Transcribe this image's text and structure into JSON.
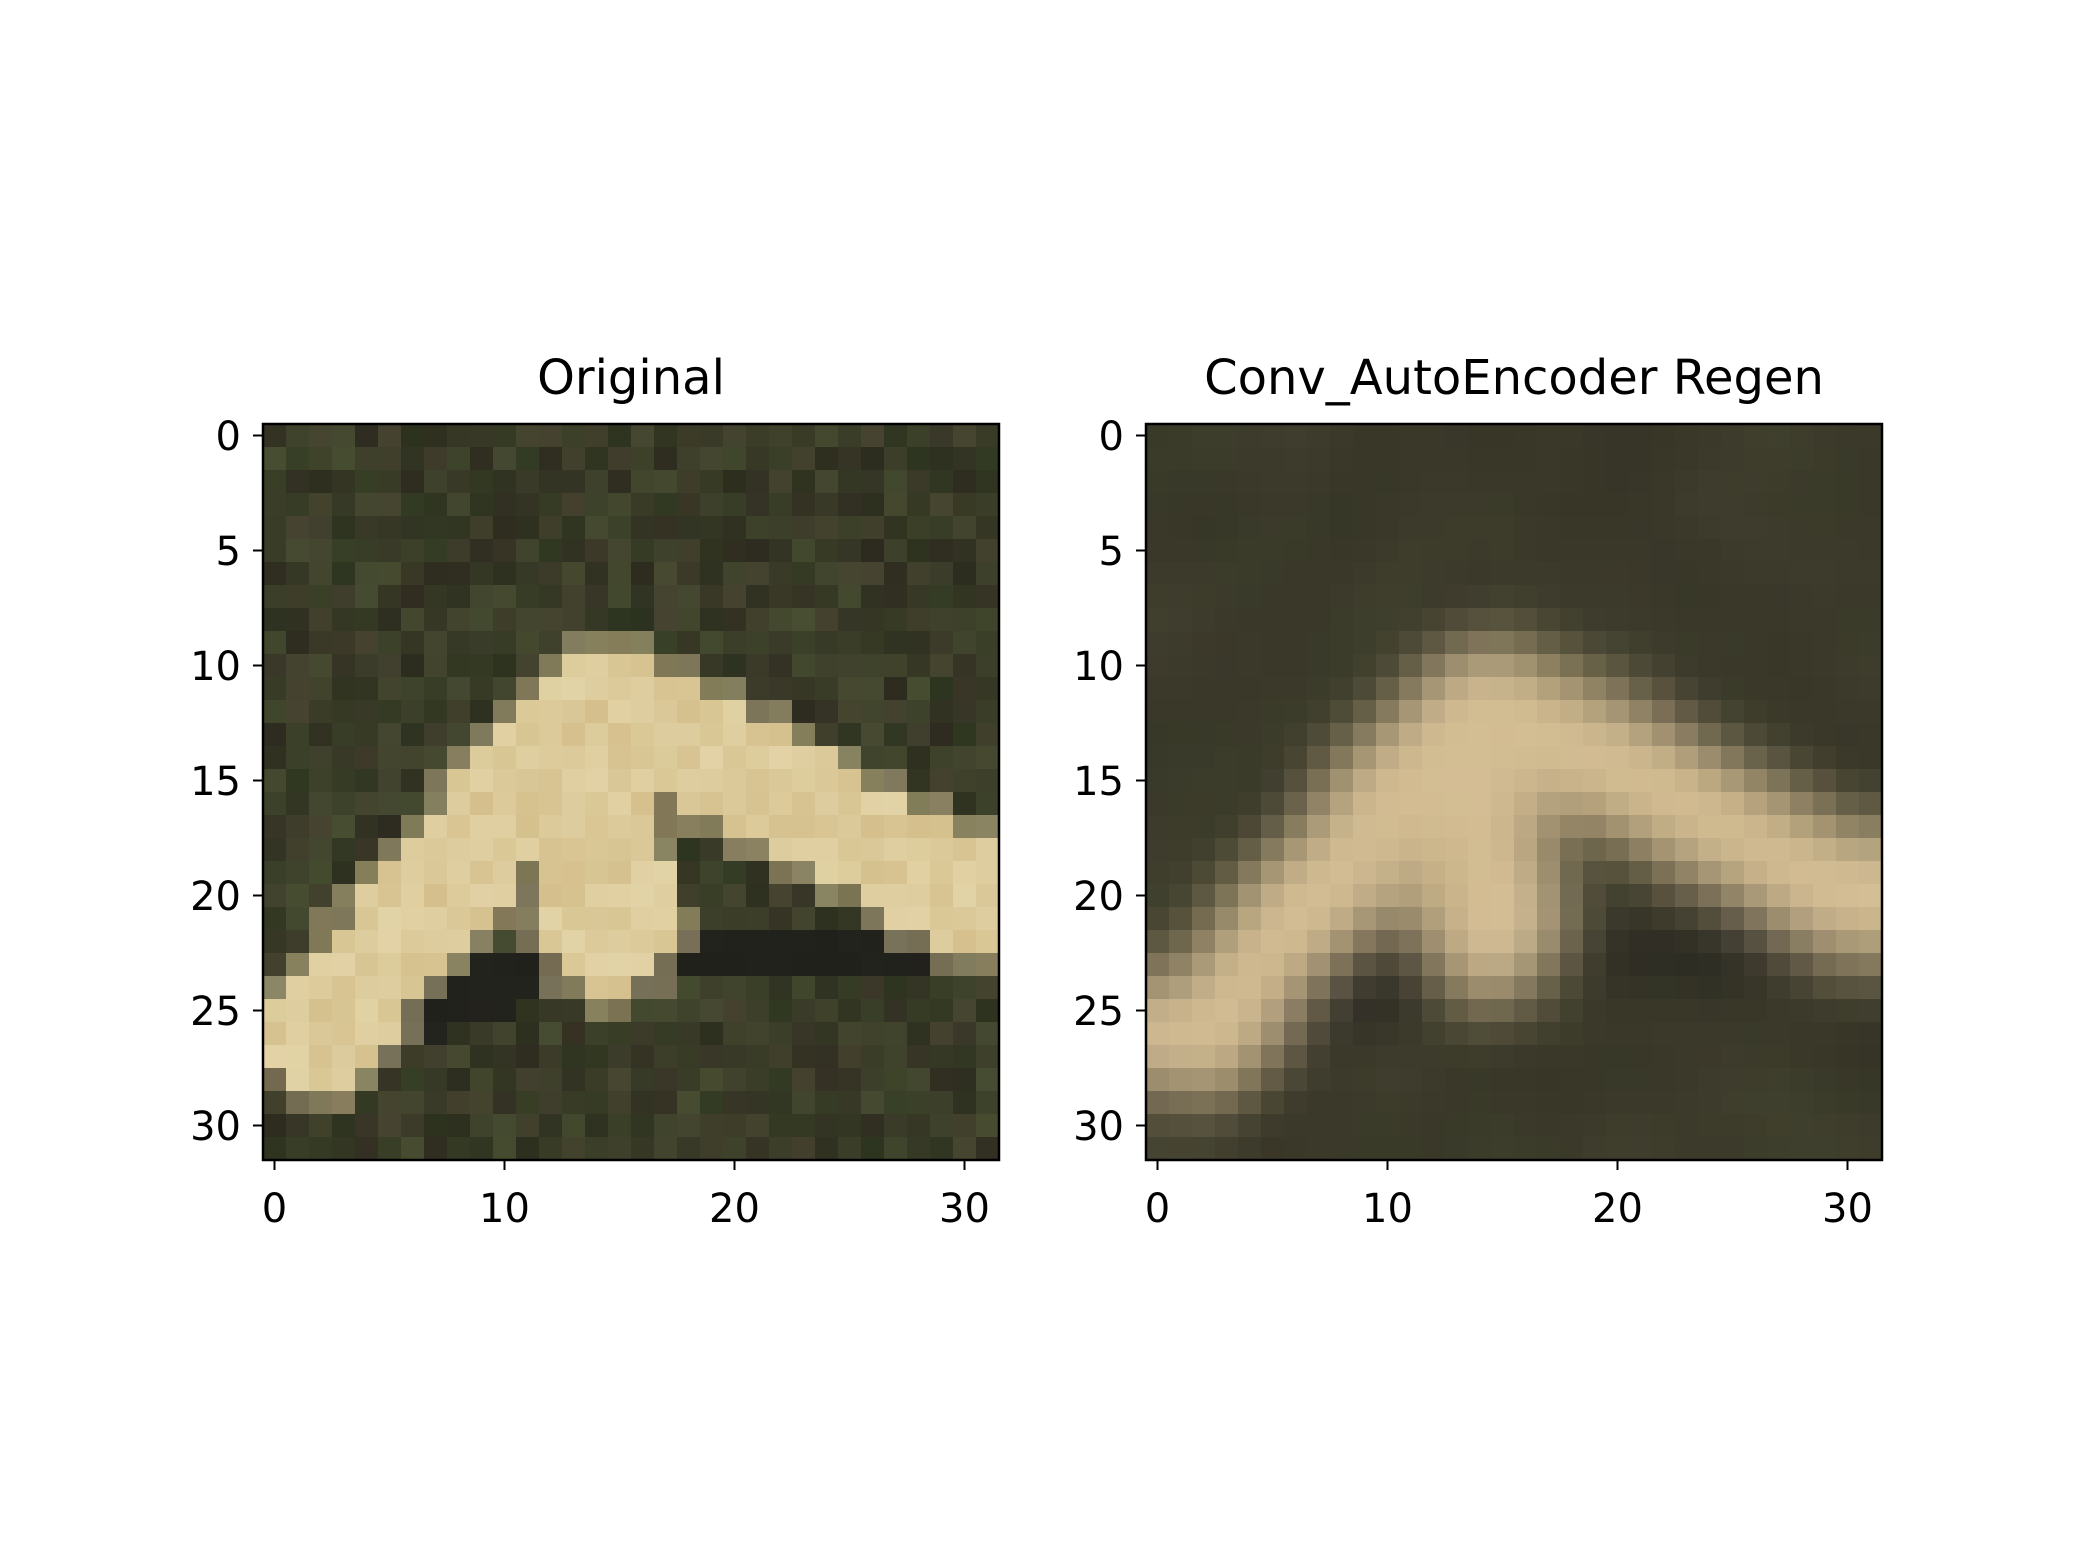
{
  "figure": {
    "panels": [
      {
        "title": "Original",
        "x_ticks": [
          "0",
          "10",
          "20",
          "30"
        ],
        "y_ticks": [
          "0",
          "5",
          "10",
          "15",
          "20",
          "25",
          "30"
        ],
        "image": {
          "pixels": 32,
          "background": "#3a3c28",
          "subject": "#e2d3a6",
          "shadow": "#1f1f1b",
          "blur": 0
        }
      },
      {
        "title": "Conv_AutoEncoder Regen",
        "x_ticks": [
          "0",
          "10",
          "20",
          "30"
        ],
        "y_ticks": [
          "0",
          "5",
          "10",
          "15",
          "20",
          "25",
          "30"
        ],
        "image": {
          "pixels": 32,
          "background": "#3b3a2a",
          "subject": "#d8c39e",
          "shadow": "#24221e",
          "blur": 1
        }
      }
    ]
  }
}
